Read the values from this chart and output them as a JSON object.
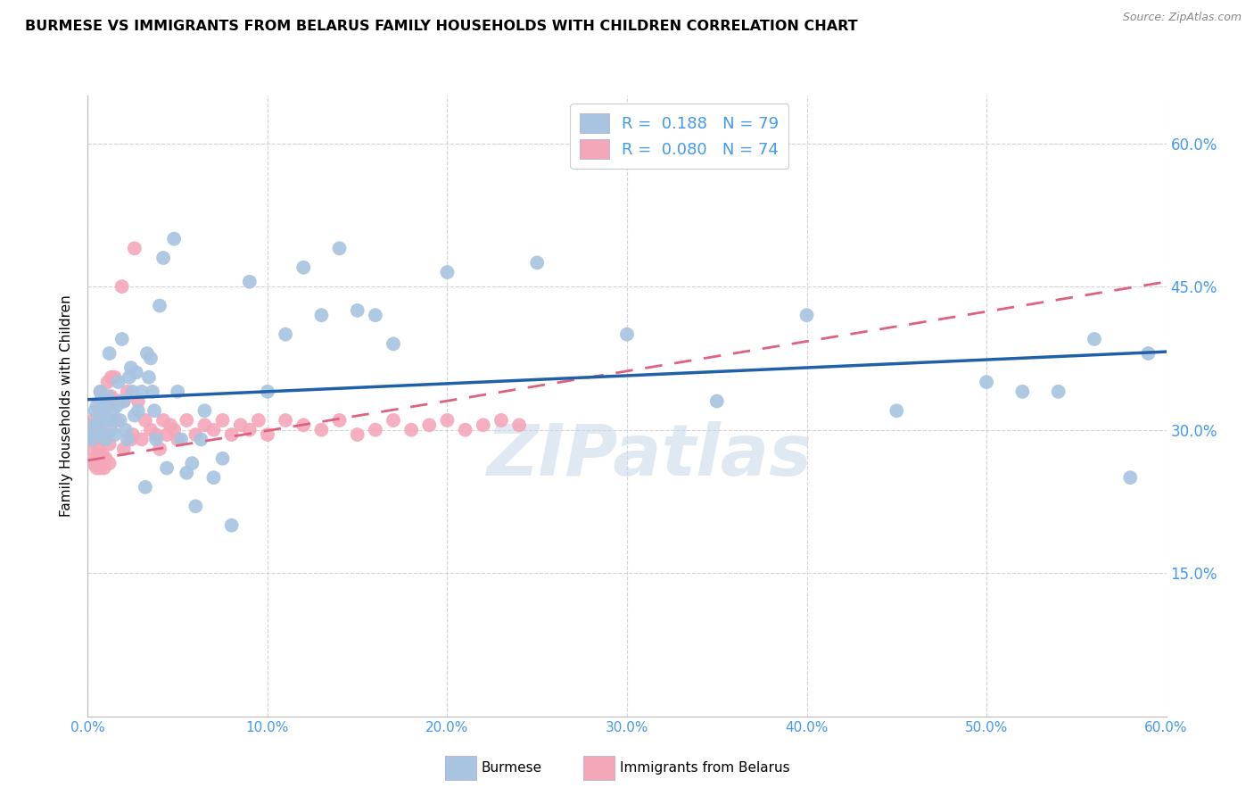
{
  "title": "BURMESE VS IMMIGRANTS FROM BELARUS FAMILY HOUSEHOLDS WITH CHILDREN CORRELATION CHART",
  "source": "Source: ZipAtlas.com",
  "ylabel": "Family Households with Children",
  "watermark": "ZIPatlas",
  "R_burmese": 0.188,
  "N_burmese": 79,
  "R_belarus": 0.08,
  "N_belarus": 74,
  "burmese_color": "#a8c4e0",
  "belarus_color": "#f4a7b9",
  "burmese_line_color": "#2060a8",
  "belarus_line_color": "#e06080",
  "right_axis_color": "#4499ee",
  "xmin": 0.0,
  "xmax": 0.6,
  "ymin": 0.0,
  "ymax": 0.65,
  "yticks": [
    0.15,
    0.3,
    0.45,
    0.6
  ],
  "ytick_labels": [
    "15.0%",
    "30.0%",
    "45.0%",
    "60.0%"
  ],
  "burmese_x": [
    0.002,
    0.003,
    0.004,
    0.004,
    0.005,
    0.005,
    0.006,
    0.006,
    0.007,
    0.007,
    0.008,
    0.008,
    0.009,
    0.009,
    0.01,
    0.01,
    0.011,
    0.011,
    0.012,
    0.012,
    0.013,
    0.014,
    0.015,
    0.016,
    0.017,
    0.018,
    0.019,
    0.02,
    0.021,
    0.022,
    0.023,
    0.024,
    0.025,
    0.026,
    0.027,
    0.028,
    0.03,
    0.032,
    0.033,
    0.034,
    0.035,
    0.036,
    0.037,
    0.038,
    0.04,
    0.042,
    0.044,
    0.048,
    0.05,
    0.052,
    0.055,
    0.058,
    0.06,
    0.063,
    0.065,
    0.07,
    0.075,
    0.08,
    0.09,
    0.1,
    0.11,
    0.12,
    0.13,
    0.14,
    0.15,
    0.16,
    0.17,
    0.2,
    0.25,
    0.3,
    0.35,
    0.4,
    0.45,
    0.5,
    0.52,
    0.54,
    0.56,
    0.58,
    0.59
  ],
  "burmese_y": [
    0.29,
    0.295,
    0.305,
    0.32,
    0.298,
    0.325,
    0.295,
    0.308,
    0.33,
    0.34,
    0.295,
    0.32,
    0.33,
    0.315,
    0.325,
    0.29,
    0.31,
    0.335,
    0.38,
    0.31,
    0.3,
    0.32,
    0.295,
    0.325,
    0.35,
    0.31,
    0.395,
    0.33,
    0.3,
    0.29,
    0.355,
    0.365,
    0.34,
    0.315,
    0.36,
    0.32,
    0.34,
    0.24,
    0.38,
    0.355,
    0.375,
    0.34,
    0.32,
    0.29,
    0.43,
    0.48,
    0.26,
    0.5,
    0.34,
    0.29,
    0.255,
    0.265,
    0.22,
    0.29,
    0.32,
    0.25,
    0.27,
    0.2,
    0.455,
    0.34,
    0.4,
    0.47,
    0.42,
    0.49,
    0.425,
    0.42,
    0.39,
    0.465,
    0.475,
    0.4,
    0.33,
    0.42,
    0.32,
    0.35,
    0.34,
    0.34,
    0.395,
    0.25,
    0.38
  ],
  "belarus_x": [
    0.001,
    0.001,
    0.002,
    0.002,
    0.003,
    0.003,
    0.003,
    0.004,
    0.004,
    0.005,
    0.005,
    0.006,
    0.006,
    0.007,
    0.007,
    0.007,
    0.008,
    0.008,
    0.009,
    0.009,
    0.01,
    0.01,
    0.011,
    0.012,
    0.012,
    0.013,
    0.013,
    0.014,
    0.015,
    0.016,
    0.017,
    0.018,
    0.019,
    0.02,
    0.02,
    0.022,
    0.024,
    0.025,
    0.026,
    0.028,
    0.03,
    0.032,
    0.035,
    0.038,
    0.04,
    0.042,
    0.044,
    0.046,
    0.048,
    0.05,
    0.055,
    0.06,
    0.065,
    0.07,
    0.075,
    0.08,
    0.085,
    0.09,
    0.095,
    0.1,
    0.11,
    0.12,
    0.13,
    0.14,
    0.15,
    0.16,
    0.17,
    0.18,
    0.19,
    0.2,
    0.21,
    0.22,
    0.23,
    0.24
  ],
  "belarus_y": [
    0.29,
    0.305,
    0.28,
    0.3,
    0.265,
    0.31,
    0.295,
    0.27,
    0.305,
    0.26,
    0.29,
    0.295,
    0.28,
    0.34,
    0.3,
    0.26,
    0.295,
    0.275,
    0.29,
    0.26,
    0.27,
    0.295,
    0.35,
    0.265,
    0.285,
    0.355,
    0.335,
    0.33,
    0.355,
    0.31,
    0.33,
    0.33,
    0.45,
    0.28,
    0.33,
    0.34,
    0.29,
    0.295,
    0.49,
    0.33,
    0.29,
    0.31,
    0.3,
    0.295,
    0.28,
    0.31,
    0.295,
    0.305,
    0.3,
    0.29,
    0.31,
    0.295,
    0.305,
    0.3,
    0.31,
    0.295,
    0.305,
    0.3,
    0.31,
    0.295,
    0.31,
    0.305,
    0.3,
    0.31,
    0.295,
    0.3,
    0.31,
    0.3,
    0.305,
    0.31,
    0.3,
    0.305,
    0.31,
    0.305
  ]
}
